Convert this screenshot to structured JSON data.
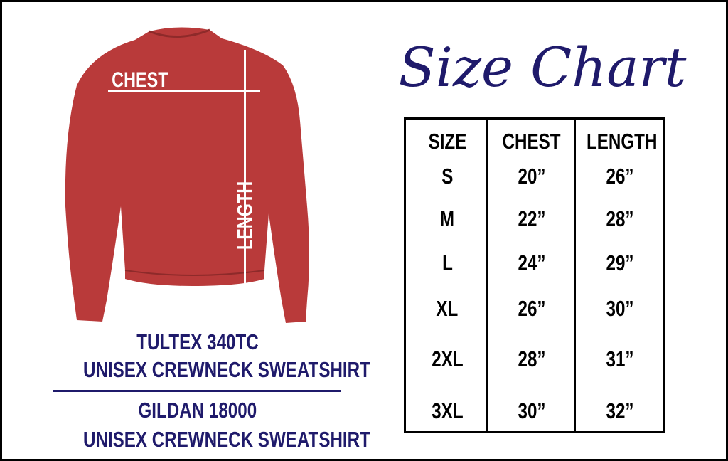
{
  "title": "Size Chart",
  "garment": {
    "color": "#b93a3a",
    "chest_label": "CHEST",
    "length_label": "LENGTH"
  },
  "captions": {
    "brand1": "TULTEX 340TC",
    "desc1": "UNISEX CREWNECK SWEATSHIRT",
    "brand2": "GILDAN 18000",
    "desc2": "UNISEX CREWNECK SWEATSHIRT"
  },
  "table": {
    "headers": [
      "SIZE",
      "CHEST",
      "LENGTH"
    ],
    "rows": [
      [
        "S",
        "20”",
        "26”"
      ],
      [
        "M",
        "22”",
        "28”"
      ],
      [
        "L",
        "24”",
        "29”"
      ],
      [
        "XL",
        "26”",
        "30”"
      ],
      [
        "2XL",
        "28”",
        "31”"
      ],
      [
        "3XL",
        "30”",
        "32”"
      ]
    ]
  },
  "colors": {
    "navy": "#1f1a6b",
    "border": "#000000"
  }
}
